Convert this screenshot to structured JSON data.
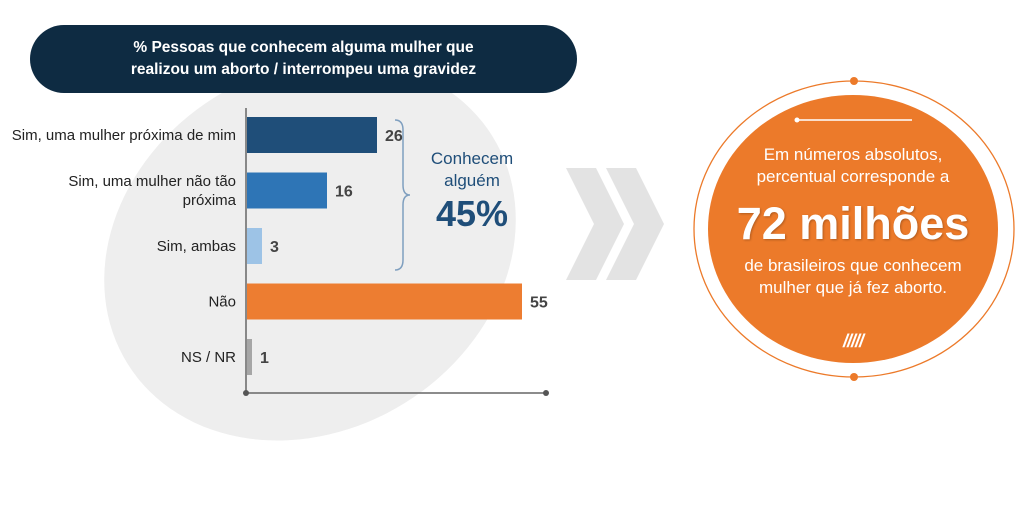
{
  "title": {
    "line1": "% Pessoas que conhecem alguma mulher que",
    "line2": "realizou um aborto / interrompeu uma gravidez"
  },
  "chart_data": {
    "type": "bar",
    "orientation": "horizontal",
    "categories": [
      [
        "Sim, uma mulher próxima de mim"
      ],
      [
        "Sim, uma mulher não tão",
        "próxima"
      ],
      [
        "Sim, ambas"
      ],
      [
        "Não"
      ],
      [
        "NS / NR"
      ]
    ],
    "values": [
      26,
      16,
      3,
      55,
      1
    ],
    "colors": [
      "#1f4e79",
      "#2e75b6",
      "#9dc3e6",
      "#ed7d31",
      "#a6a6a6"
    ],
    "xlim": [
      0,
      60
    ],
    "grid": false,
    "data_labels": true
  },
  "callout": {
    "line1": "Conhecem",
    "line2": "alguém",
    "percent": "45%"
  },
  "circle": {
    "line1a": "Em números absolutos,",
    "line1b": "percentual corresponde a",
    "big": "72 milhões",
    "line2a": "de brasileiros que conhecem",
    "line2b": "mulher que já fez aborto.",
    "decor": "/////"
  },
  "colors": {
    "navy": "#0e2b42",
    "orange": "#ec7a2a",
    "callout_blue": "#1f4e79"
  }
}
